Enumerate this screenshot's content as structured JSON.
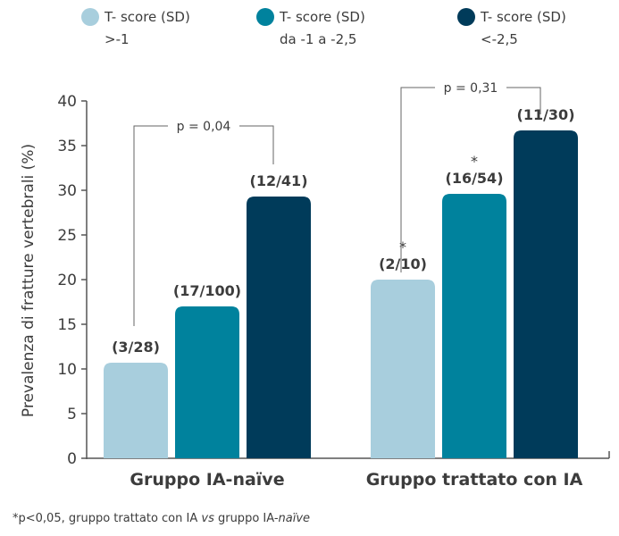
{
  "chart_data": {
    "type": "bar",
    "categories": [
      "Gruppo IA-naïve",
      "Gruppo trattato con IA"
    ],
    "ylabel": "Prevalenza di fratture vertebrali (%)",
    "ylim": [
      0,
      40
    ],
    "yticks": [
      "0",
      "5",
      "10",
      "15",
      "20",
      "25",
      "30",
      "35",
      "40"
    ],
    "ytick_values": [
      0,
      5,
      10,
      15,
      20,
      25,
      30,
      35,
      40
    ],
    "grid": false,
    "legend_position": "top",
    "series": [
      {
        "name_line1": "T- score (SD)",
        "name_line2": ">-1",
        "color": "#a8cedd",
        "values": [
          10.7,
          20
        ],
        "labels": [
          "(3/28)",
          "(2/10)"
        ],
        "stars": [
          "",
          "*"
        ]
      },
      {
        "name_line1": "T- score (SD)",
        "name_line2": "da -1 a -2,5",
        "color": "#00829d",
        "values": [
          17,
          29.6
        ],
        "labels": [
          "(17/100)",
          "(16/54)"
        ],
        "stars": [
          "",
          "*"
        ]
      },
      {
        "name_line1": "T- score (SD)",
        "name_line2": "<-2,5",
        "color": "#003b5a",
        "values": [
          29.3,
          36.7
        ],
        "labels": [
          "(12/41)",
          "(11/30)"
        ],
        "stars": [
          "",
          ""
        ]
      }
    ],
    "annotations": [
      {
        "text": "p = 0,04",
        "group": 0,
        "from_series": 0,
        "to_series": 2
      },
      {
        "text": "p = 0,31",
        "group": 1,
        "from_series": 0,
        "to_series": 2
      }
    ]
  },
  "footnote": {
    "part1": "*p<0,05, gruppo trattato con IA ",
    "part2": "vs",
    "part3": " gruppo IA-",
    "part4": "naïve"
  }
}
